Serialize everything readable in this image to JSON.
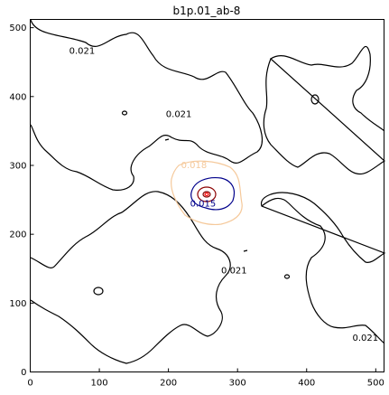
{
  "chart_data": {
    "type": "contour",
    "title": "b1p.01_ab-8",
    "xlim": [
      0,
      512
    ],
    "ylim": [
      0,
      512
    ],
    "xticks": [
      0,
      100,
      200,
      300,
      400,
      500
    ],
    "yticks": [
      0,
      100,
      200,
      300,
      400,
      500
    ],
    "grid": false,
    "contour_levels": [
      {
        "level": "0.015",
        "color": "#00008b"
      },
      {
        "level": "0.018",
        "color": "#f5c99b"
      },
      {
        "level": "0.021",
        "color": "#000000"
      }
    ],
    "contour_labels": [
      {
        "text": "0.021",
        "x": 75,
        "y": 462,
        "color": "#000000"
      },
      {
        "text": "0.021",
        "x": 215,
        "y": 370,
        "color": "#000000"
      },
      {
        "text": "0.021",
        "x": 295,
        "y": 143,
        "color": "#000000"
      },
      {
        "text": "0.021",
        "x": 485,
        "y": 45,
        "color": "#000000"
      },
      {
        "text": "0.018",
        "x": 237,
        "y": 296,
        "color": "#f5c99b"
      },
      {
        "text": "0.015",
        "x": 250,
        "y": 240,
        "color": "#00008b"
      }
    ]
  }
}
